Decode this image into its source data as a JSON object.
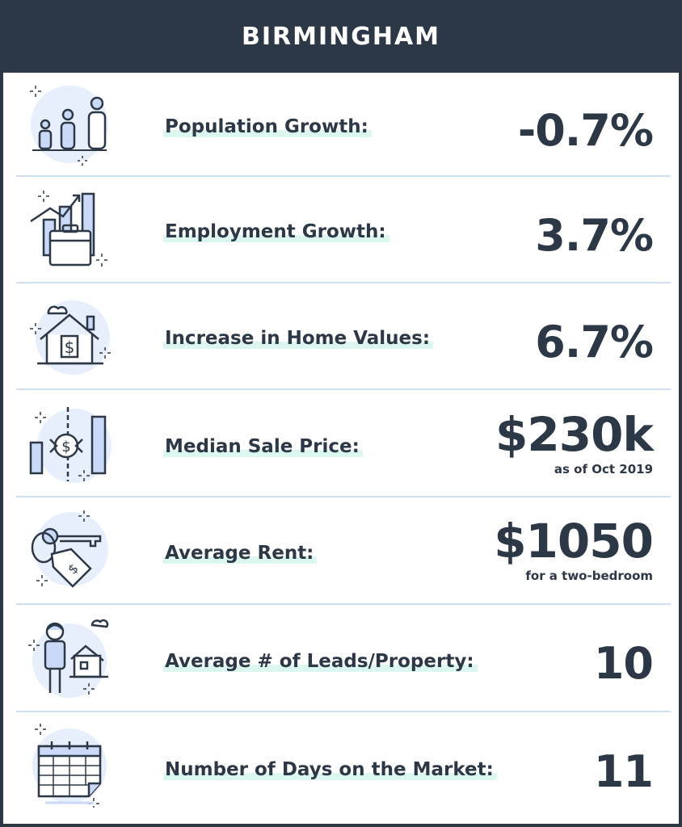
{
  "header": {
    "title": "BIRMINGHAM"
  },
  "rows": [
    {
      "icon": "people-icon",
      "label": "Population Growth:",
      "value": "-0.7%"
    },
    {
      "icon": "briefcase-chart-icon",
      "label": "Employment Growth:",
      "value": "3.7%"
    },
    {
      "icon": "house-dollar-icon",
      "label": "Increase in Home Values:",
      "value": "6.7%"
    },
    {
      "icon": "price-chart-icon",
      "label": "Median Sale Price:",
      "value": "$230k",
      "note": "as of Oct 2019"
    },
    {
      "icon": "key-tag-icon",
      "label": "Average Rent:",
      "value": "$1050",
      "note": "for a two-bedroom"
    },
    {
      "icon": "person-house-icon",
      "label": "Average # of Leads/Property:",
      "value": "10"
    },
    {
      "icon": "calendar-icon",
      "label": "Number of Days on the Market:",
      "value": "11"
    }
  ],
  "colors": {
    "header_bg": "#2d3847",
    "text": "#2d3847",
    "highlight": "#dcf7ef",
    "icon_blue": "#c9d9f7",
    "icon_circle": "#e8effc",
    "divider": "#cfdff2"
  }
}
